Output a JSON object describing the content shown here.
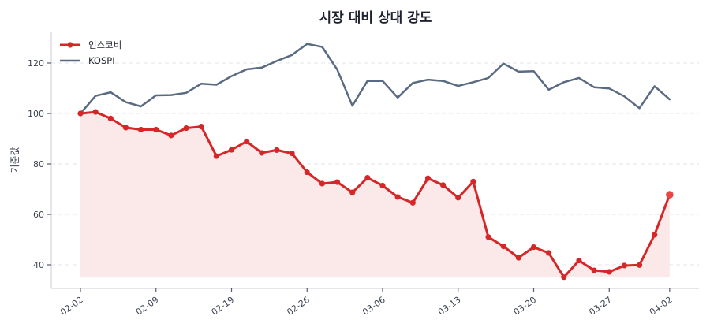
{
  "chart_data": {
    "type": "line",
    "title": "시장 대비 상대 강도",
    "xlabel": "",
    "ylabel": "기준값",
    "ylim": [
      32,
      132
    ],
    "yticks": [
      40,
      60,
      80,
      100,
      120
    ],
    "grid": true,
    "legend_position": "upper left",
    "x_tick_labels": [
      {
        "index": 0,
        "label": "02-02"
      },
      {
        "index": 5,
        "label": "02-09"
      },
      {
        "index": 10,
        "label": "02-19"
      },
      {
        "index": 15,
        "label": "02-26"
      },
      {
        "index": 20,
        "label": "03-06"
      },
      {
        "index": 25,
        "label": "03-13"
      },
      {
        "index": 30,
        "label": "03-20"
      },
      {
        "index": 35,
        "label": "03-27"
      },
      {
        "index": 39,
        "label": "04-02"
      }
    ],
    "n_points": 40,
    "series": [
      {
        "name": "인스코비",
        "color": "#d62728",
        "fill_color": "#fbe9e9",
        "markers": true,
        "values": [
          100.0,
          100.6,
          98.0,
          94.4,
          93.6,
          93.6,
          91.3,
          94.2,
          94.8,
          83.1,
          85.6,
          88.9,
          84.4,
          85.5,
          84.2,
          76.7,
          72.2,
          72.8,
          68.7,
          74.5,
          71.4,
          66.9,
          64.6,
          74.3,
          71.6,
          66.6,
          73.0,
          51.0,
          47.3,
          42.8,
          47.0,
          44.7,
          35.1,
          41.7,
          37.8,
          37.2,
          39.7,
          39.9,
          51.9,
          67.8
        ]
      },
      {
        "name": "KOSPI",
        "color": "#5a6a82",
        "markers": false,
        "values": [
          100.0,
          107.0,
          108.4,
          104.5,
          102.8,
          107.2,
          107.3,
          108.2,
          111.8,
          111.4,
          114.8,
          117.5,
          118.2,
          120.8,
          123.2,
          127.6,
          126.4,
          117.4,
          103.1,
          112.9,
          112.9,
          106.3,
          112.1,
          113.4,
          112.9,
          110.9,
          112.4,
          114.1,
          119.8,
          116.6,
          116.8,
          109.4,
          112.4,
          114.1,
          110.4,
          109.9,
          106.8,
          102.1,
          110.8,
          105.6
        ]
      }
    ]
  }
}
